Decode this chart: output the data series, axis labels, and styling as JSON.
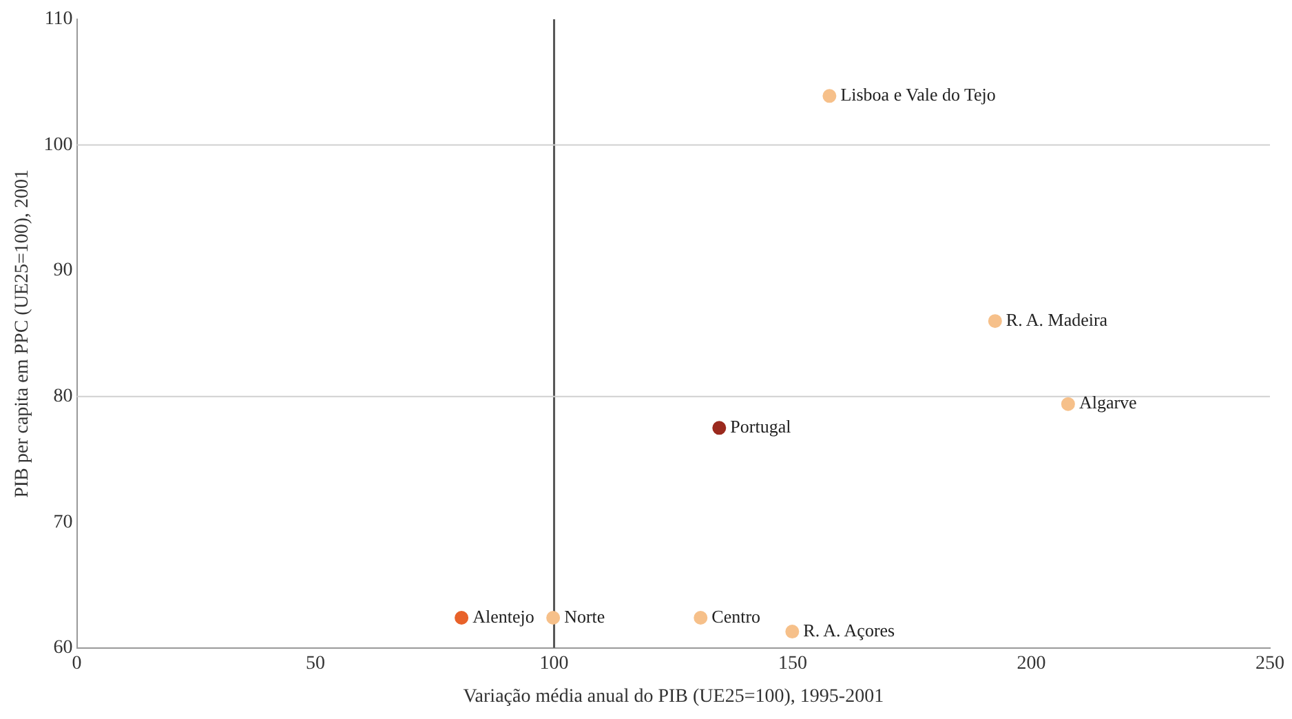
{
  "chart_data": {
    "type": "scatter",
    "xlabel": "Variação média anual do PIB (UE25=100), 1995-2001",
    "ylabel": "PIB per capita em PPC (UE25=100), 2001",
    "series": [
      {
        "colors": [
          "#f6c08a",
          "#f6c08a",
          "#f6c08a",
          "#9b2a1e",
          "#e8622a",
          "#f6c08a",
          "#f6c08a",
          "#f6c08a"
        ],
        "x": [
          157.7,
          192.4,
          207.7,
          134.6,
          80.6,
          99.8,
          130.7,
          149.9
        ],
        "values": [
          103.9,
          86.0,
          79.4,
          77.5,
          62.4,
          62.4,
          62.4,
          61.3
        ]
      }
    ],
    "marker": "circle",
    "xlim": [
      0,
      250
    ],
    "xticks": [
      0,
      50,
      100,
      150,
      200,
      250
    ],
    "ylim": [
      60,
      110
    ],
    "yticks": [
      60,
      70,
      80,
      90,
      100,
      110
    ],
    "grid": false,
    "ref_lines": [
      {
        "axis": "x",
        "value": 100,
        "color": "#555555"
      },
      {
        "axis": "y",
        "value": 80,
        "color": "#d0d0d0"
      },
      {
        "axis": "y",
        "value": 100,
        "color": "#d0d0d0"
      }
    ],
    "annotations": [
      {
        "text": "Lisboa e Vale do Tejo",
        "x": 157.7,
        "y": 103.9
      },
      {
        "text": "R. A. Madeira",
        "x": 192.4,
        "y": 86.0
      },
      {
        "text": "Algarve",
        "x": 207.7,
        "y": 79.4
      },
      {
        "text": "Portugal",
        "x": 134.6,
        "y": 77.5
      },
      {
        "text": "Alentejo",
        "x": 80.6,
        "y": 62.4
      },
      {
        "text": "Norte",
        "x": 99.8,
        "y": 62.4
      },
      {
        "text": "Centro",
        "x": 130.7,
        "y": 62.4
      },
      {
        "text": "R. A. Açores",
        "x": 149.9,
        "y": 61.3
      }
    ],
    "legend": false
  }
}
